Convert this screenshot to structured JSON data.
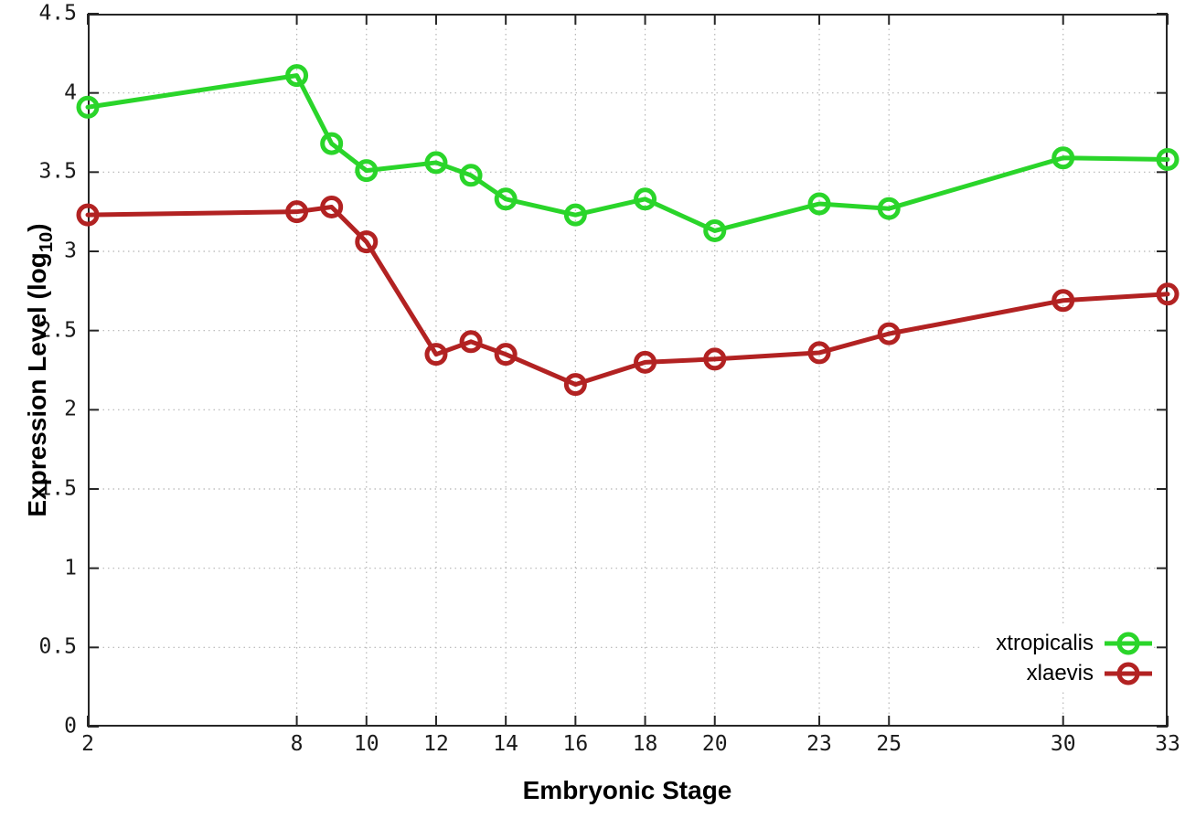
{
  "chart_data": {
    "type": "line",
    "title": "",
    "xlabel": "Embryonic Stage",
    "ylabel": "Expression Level (log10)",
    "ylabel_parts": {
      "pre": "Expression Level (log",
      "sub": "10",
      "post": ")"
    },
    "x": [
      2,
      8,
      9,
      10,
      12,
      13,
      14,
      16,
      18,
      20,
      23,
      25,
      30,
      33
    ],
    "series": [
      {
        "name": "xtropicalis",
        "color": "#2ad52a",
        "values": [
          3.91,
          4.11,
          3.68,
          3.51,
          3.56,
          3.48,
          3.33,
          3.23,
          3.33,
          3.13,
          3.3,
          3.27,
          3.59,
          3.58
        ]
      },
      {
        "name": "xlaevis",
        "color": "#b22222",
        "values": [
          3.23,
          3.25,
          3.28,
          3.06,
          2.35,
          2.43,
          2.35,
          2.16,
          2.3,
          2.32,
          2.36,
          2.48,
          2.69,
          2.73
        ]
      }
    ],
    "xlim": [
      2,
      33
    ],
    "ylim": [
      0,
      4.5
    ],
    "xticks": [
      2,
      8,
      10,
      12,
      14,
      16,
      18,
      20,
      23,
      25,
      30,
      33
    ],
    "yticks": [
      0,
      0.5,
      1,
      1.5,
      2,
      2.5,
      3,
      3.5,
      4,
      4.5
    ],
    "grid": true,
    "legend_position": "bottom-right",
    "marker": "open-circle",
    "styles": {
      "grid_color": "#b5b5b5",
      "axis_color": "#262626",
      "line_width": 5,
      "marker_radius": 10,
      "marker_stroke": 5,
      "tick_length": 12
    }
  }
}
